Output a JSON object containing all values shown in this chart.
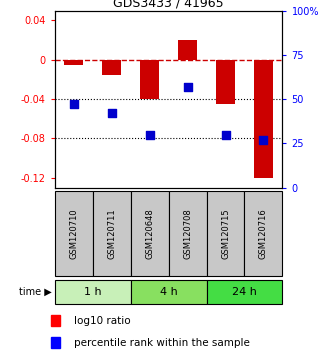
{
  "title": "GDS3433 / 41965",
  "samples": [
    "GSM120710",
    "GSM120711",
    "GSM120648",
    "GSM120708",
    "GSM120715",
    "GSM120716"
  ],
  "groups": [
    {
      "label": "1 h",
      "indices": [
        0,
        1
      ],
      "color": "#c8f0b8"
    },
    {
      "label": "4 h",
      "indices": [
        2,
        3
      ],
      "color": "#88e060"
    },
    {
      "label": "24 h",
      "indices": [
        4,
        5
      ],
      "color": "#44dd44"
    }
  ],
  "log10_ratio": [
    -0.005,
    -0.015,
    -0.04,
    0.02,
    -0.045,
    -0.12
  ],
  "percentile_rank": [
    47,
    42,
    30,
    57,
    30,
    27
  ],
  "ylim_left": [
    -0.13,
    0.05
  ],
  "ylim_right": [
    0,
    100
  ],
  "yticks_left": [
    0.04,
    0.0,
    -0.04,
    -0.08,
    -0.12
  ],
  "yticks_right": [
    100,
    75,
    50,
    25,
    0
  ],
  "bar_color": "#cc0000",
  "dot_color": "#0000cc",
  "dashed_line_color": "#cc0000",
  "dotted_line_color": "#000000",
  "bar_width": 0.5,
  "dot_size": 30,
  "sample_box_color": "#c8c8c8",
  "bg_color": "#ffffff",
  "title_fontsize": 9,
  "tick_fontsize": 7,
  "label_fontsize": 6,
  "group_fontsize": 8,
  "legend_fontsize": 7.5
}
